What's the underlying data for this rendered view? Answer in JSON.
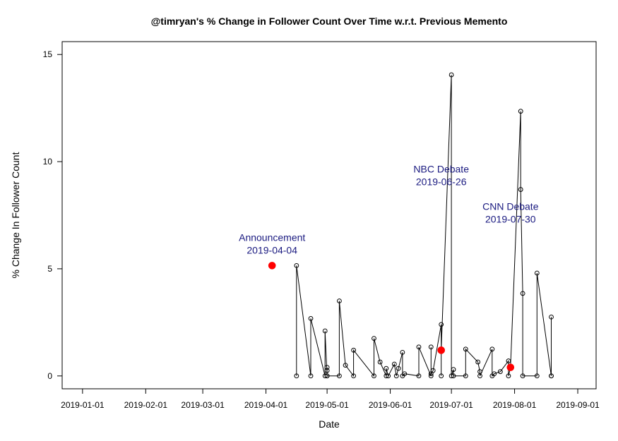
{
  "chart_data": {
    "type": "line",
    "title": "@timryan's % Change in Follower Count Over Time w.r.t. Previous Memento",
    "xlabel": "Date",
    "ylabel": "% Change In Follower Count",
    "x_ticks": [
      "2019-01-01",
      "2019-02-01",
      "2019-03-01",
      "2019-04-01",
      "2019-05-01",
      "2019-06-01",
      "2019-07-01",
      "2019-08-01",
      "2019-09-01"
    ],
    "y_ticks": [
      0,
      5,
      10,
      15
    ],
    "xlim": [
      "2018-12-22",
      "2019-09-10"
    ],
    "ylim": [
      -0.6,
      15.6
    ],
    "grid": false,
    "legend": "none",
    "series": [
      {
        "style": "line-with-open-circles",
        "color": "#000000",
        "points": [
          {
            "x": "2019-04-16",
            "y": 0
          },
          {
            "x": "2019-04-16",
            "y": 5.15
          },
          {
            "x": "2019-04-23",
            "y": 0
          },
          {
            "x": "2019-04-23",
            "y": 2.68
          },
          {
            "x": "2019-04-30",
            "y": 0
          },
          {
            "x": "2019-04-30",
            "y": 2.1
          },
          {
            "x": "2019-05-01",
            "y": 0
          },
          {
            "x": "2019-05-01",
            "y": 0.25
          },
          {
            "x": "2019-05-01",
            "y": 0.4
          },
          {
            "x": "2019-05-01",
            "y": 0
          },
          {
            "x": "2019-05-07",
            "y": 0
          },
          {
            "x": "2019-05-07",
            "y": 3.5
          },
          {
            "x": "2019-05-10",
            "y": 0.5
          },
          {
            "x": "2019-05-14",
            "y": 0
          },
          {
            "x": "2019-05-14",
            "y": 1.2
          },
          {
            "x": "2019-05-24",
            "y": 0
          },
          {
            "x": "2019-05-24",
            "y": 1.75
          },
          {
            "x": "2019-05-27",
            "y": 0.65
          },
          {
            "x": "2019-05-30",
            "y": 0
          },
          {
            "x": "2019-05-30",
            "y": 0.35
          },
          {
            "x": "2019-05-31",
            "y": 0
          },
          {
            "x": "2019-06-03",
            "y": 0.55
          },
          {
            "x": "2019-06-04",
            "y": 0
          },
          {
            "x": "2019-06-05",
            "y": 0.35
          },
          {
            "x": "2019-06-07",
            "y": 1.1
          },
          {
            "x": "2019-06-07",
            "y": 0
          },
          {
            "x": "2019-06-08",
            "y": 0.1
          },
          {
            "x": "2019-06-15",
            "y": 0
          },
          {
            "x": "2019-06-15",
            "y": 1.35
          },
          {
            "x": "2019-06-21",
            "y": 0
          },
          {
            "x": "2019-06-21",
            "y": 1.35
          },
          {
            "x": "2019-06-21",
            "y": 0.1
          },
          {
            "x": "2019-06-22",
            "y": 0.25
          },
          {
            "x": "2019-06-26",
            "y": 2.4
          },
          {
            "x": "2019-06-26",
            "y": 0
          },
          {
            "x": "2019-06-26",
            "y": 1.2
          },
          {
            "x": "2019-07-01",
            "y": 14.05
          },
          {
            "x": "2019-07-01",
            "y": 0
          },
          {
            "x": "2019-07-02",
            "y": 0.3
          },
          {
            "x": "2019-07-02",
            "y": 0
          },
          {
            "x": "2019-07-08",
            "y": 0
          },
          {
            "x": "2019-07-08",
            "y": 1.25
          },
          {
            "x": "2019-07-14",
            "y": 0.65
          },
          {
            "x": "2019-07-15",
            "y": 0.2
          },
          {
            "x": "2019-07-15",
            "y": 0
          },
          {
            "x": "2019-07-21",
            "y": 1.25
          },
          {
            "x": "2019-07-21",
            "y": 0
          },
          {
            "x": "2019-07-22",
            "y": 0.1
          },
          {
            "x": "2019-07-25",
            "y": 0.2
          },
          {
            "x": "2019-07-29",
            "y": 0.7
          },
          {
            "x": "2019-07-29",
            "y": 0
          },
          {
            "x": "2019-07-30",
            "y": 0.4
          },
          {
            "x": "2019-08-04",
            "y": 12.35
          },
          {
            "x": "2019-08-04",
            "y": 8.7
          },
          {
            "x": "2019-08-05",
            "y": 3.85
          },
          {
            "x": "2019-08-05",
            "y": 0
          },
          {
            "x": "2019-08-12",
            "y": 0
          },
          {
            "x": "2019-08-12",
            "y": 4.8
          },
          {
            "x": "2019-08-19",
            "y": 0
          },
          {
            "x": "2019-08-19",
            "y": 2.75
          },
          {
            "x": "2019-08-19",
            "y": 0
          }
        ]
      }
    ],
    "highlights": [
      {
        "x": "2019-04-04",
        "y": 5.15,
        "color": "#ff0000",
        "line1": "Announcement",
        "line2": "2019-04-04",
        "label_y": 5.7
      },
      {
        "x": "2019-06-26",
        "y": 1.2,
        "color": "#ff0000",
        "line1": "NBC Debate",
        "line2": "2019-06-26",
        "label_y": 8.9
      },
      {
        "x": "2019-07-30",
        "y": 0.4,
        "color": "#ff0000",
        "line1": "CNN Debate",
        "line2": "2019-07-30",
        "label_y": 7.15
      }
    ],
    "annotation_color": "#1a1a80"
  }
}
